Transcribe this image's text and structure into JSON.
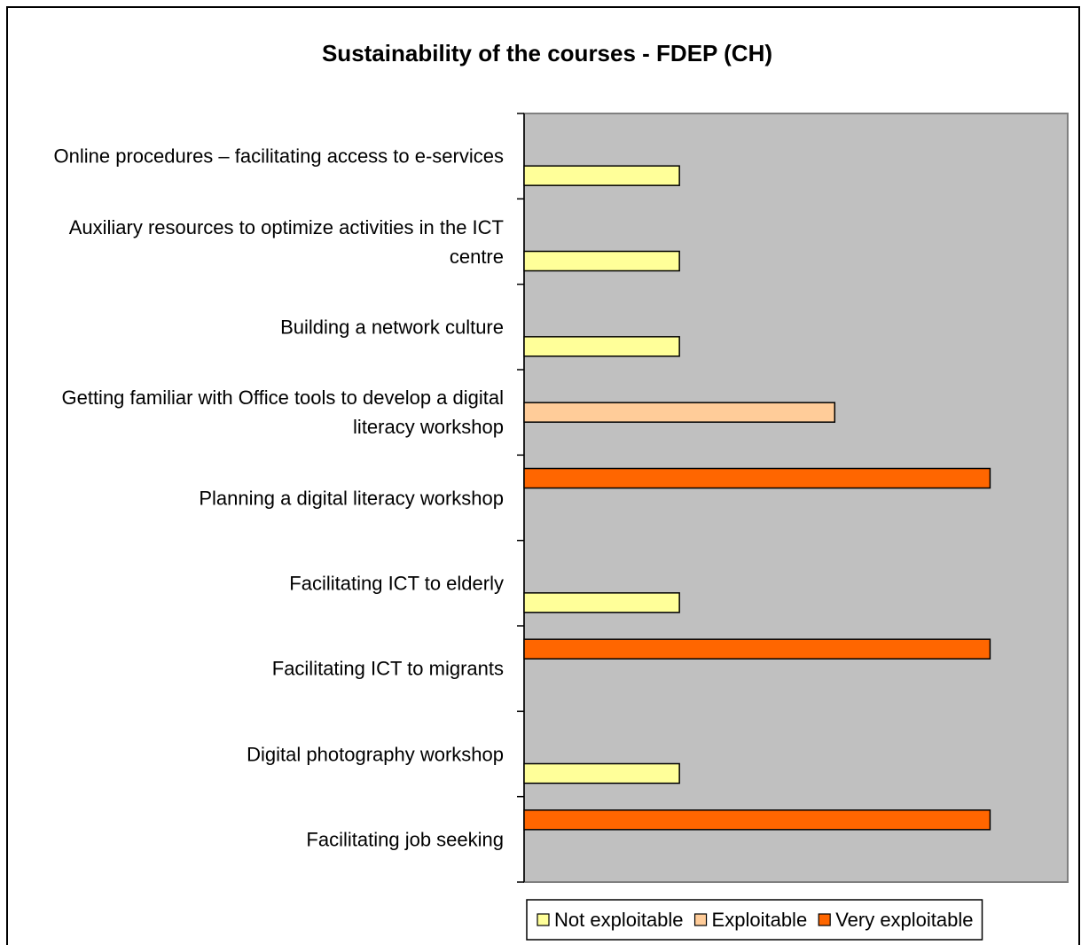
{
  "chart_data": {
    "type": "bar",
    "orientation": "horizontal",
    "title": "Sustainability of the courses - FDEP (CH)",
    "categories": [
      "Online procedures – facilitating access to e-services",
      "Auxiliary resources to optimize activities in the ICT centre",
      "Building a network culture",
      "Getting familiar with Office tools to develop a digital literacy workshop",
      "Planning a digital literacy workshop",
      "Facilitating ICT to elderly",
      "Facilitating ICT to migrants",
      "Digital photography workshop",
      "Facilitating job seeking"
    ],
    "series": [
      {
        "name": "Not exploitable",
        "color": "#ffff99",
        "values": [
          1,
          1,
          1,
          null,
          null,
          1,
          null,
          1,
          null
        ]
      },
      {
        "name": "Exploitable",
        "color": "#ffcc99",
        "values": [
          null,
          null,
          null,
          2,
          null,
          null,
          null,
          null,
          null
        ]
      },
      {
        "name": "Very exploitable",
        "color": "#ff6600",
        "values": [
          null,
          null,
          null,
          null,
          3,
          null,
          3,
          null,
          3
        ]
      }
    ],
    "xlim": [
      0,
      3.5
    ],
    "legend": "bottom"
  }
}
